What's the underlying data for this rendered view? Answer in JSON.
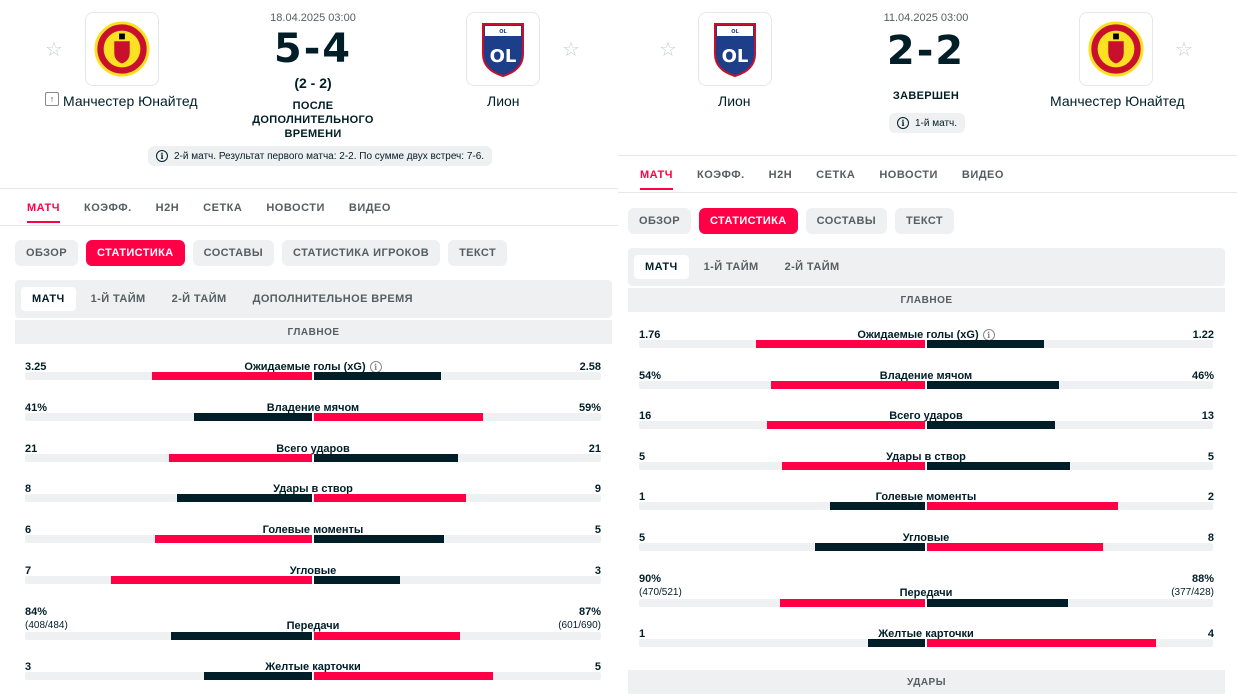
{
  "colors": {
    "accent": "#ff0046",
    "dark": "#001e28",
    "muted": "#555e61",
    "chip_bg": "#eef0f1"
  },
  "panels": [
    {
      "id": "left",
      "date": "18.04.2025 03:00",
      "home": {
        "name": "Манчестер Юнайтед",
        "logo": "manchester-united-crest"
      },
      "away": {
        "name": "Лион",
        "logo": "lyon-crest"
      },
      "score": "5-4",
      "sub_score": "(2 - 2)",
      "status_lines": [
        "ПОСЛЕ",
        "ДОПОЛНИТЕЛЬНОГО",
        "ВРЕМЕНИ"
      ],
      "info": "2-й матч. Результат первого матча: 2-2. По сумме двух встреч: 7-6.",
      "tabs": [
        "МАТЧ",
        "КОЭФФ.",
        "H2H",
        "СЕТКА",
        "НОВОСТИ",
        "ВИДЕО"
      ],
      "active_tab": 0,
      "chips": [
        "ОБЗОР",
        "СТАТИСТИКА",
        "СОСТАВЫ",
        "СТАТИСТИКА ИГРОКОВ",
        "ТЕКСТ"
      ],
      "active_chip": 1,
      "periods": [
        "МАТЧ",
        "1-Й ТАЙМ",
        "2-Й ТАЙМ",
        "ДОПОЛНИТЕЛЬНОЕ ВРЕМЯ"
      ],
      "active_period": 0,
      "section": "ГЛАВНОЕ",
      "stats": [
        {
          "label": "Ожидаемые голы (xG)",
          "home": "3.25",
          "away": "2.58",
          "home_num": 3.25,
          "away_num": 2.58,
          "info": true
        },
        {
          "label": "Владение мячом",
          "home": "41%",
          "away": "59%",
          "home_num": 41,
          "away_num": 59
        },
        {
          "label": "Всего ударов",
          "home": "21",
          "away": "21",
          "home_num": 21,
          "away_num": 21
        },
        {
          "label": "Удары в створ",
          "home": "8",
          "away": "9",
          "home_num": 8,
          "away_num": 9
        },
        {
          "label": "Голевые моменты",
          "home": "6",
          "away": "5",
          "home_num": 6,
          "away_num": 5
        },
        {
          "label": "Угловые",
          "home": "7",
          "away": "3",
          "home_num": 7,
          "away_num": 3
        },
        {
          "label": "Передачи",
          "home": "84%",
          "away": "87%",
          "home_sub": "(408/484)",
          "away_sub": "(601/690)",
          "home_num": 84,
          "away_num": 87
        },
        {
          "label": "Желтые карточки",
          "home": "3",
          "away": "5",
          "home_num": 3,
          "away_num": 5
        }
      ]
    },
    {
      "id": "right",
      "date": "11.04.2025 03:00",
      "home": {
        "name": "Лион",
        "logo": "lyon-crest"
      },
      "away": {
        "name": "Манчестер Юнайтед",
        "logo": "manchester-united-crest"
      },
      "score": "2-2",
      "sub_score": "",
      "status_lines": [
        "ЗАВЕРШЕН"
      ],
      "info": "1-й матч.",
      "tabs": [
        "МАТЧ",
        "КОЭФФ.",
        "H2H",
        "СЕТКА",
        "НОВОСТИ",
        "ВИДЕО"
      ],
      "active_tab": 0,
      "chips": [
        "ОБЗОР",
        "СТАТИСТИКА",
        "СОСТАВЫ",
        "ТЕКСТ"
      ],
      "active_chip": 1,
      "periods": [
        "МАТЧ",
        "1-Й ТАЙМ",
        "2-Й ТАЙМ"
      ],
      "active_period": 0,
      "section": "ГЛАВНОЕ",
      "section2": "УДАРЫ",
      "stats": [
        {
          "label": "Ожидаемые голы (xG)",
          "home": "1.76",
          "away": "1.22",
          "home_num": 1.76,
          "away_num": 1.22,
          "info": true
        },
        {
          "label": "Владение мячом",
          "home": "54%",
          "away": "46%",
          "home_num": 54,
          "away_num": 46
        },
        {
          "label": "Всего ударов",
          "home": "16",
          "away": "13",
          "home_num": 16,
          "away_num": 13
        },
        {
          "label": "Удары в створ",
          "home": "5",
          "away": "5",
          "home_num": 5,
          "away_num": 5
        },
        {
          "label": "Голевые моменты",
          "home": "1",
          "away": "2",
          "home_num": 1,
          "away_num": 2
        },
        {
          "label": "Угловые",
          "home": "5",
          "away": "8",
          "home_num": 5,
          "away_num": 8
        },
        {
          "label": "Передачи",
          "home": "90%",
          "away": "88%",
          "home_sub": "(470/521)",
          "away_sub": "(377/428)",
          "home_num": 90,
          "away_num": 88
        },
        {
          "label": "Желтые карточки",
          "home": "1",
          "away": "4",
          "home_num": 1,
          "away_num": 4
        }
      ]
    }
  ]
}
